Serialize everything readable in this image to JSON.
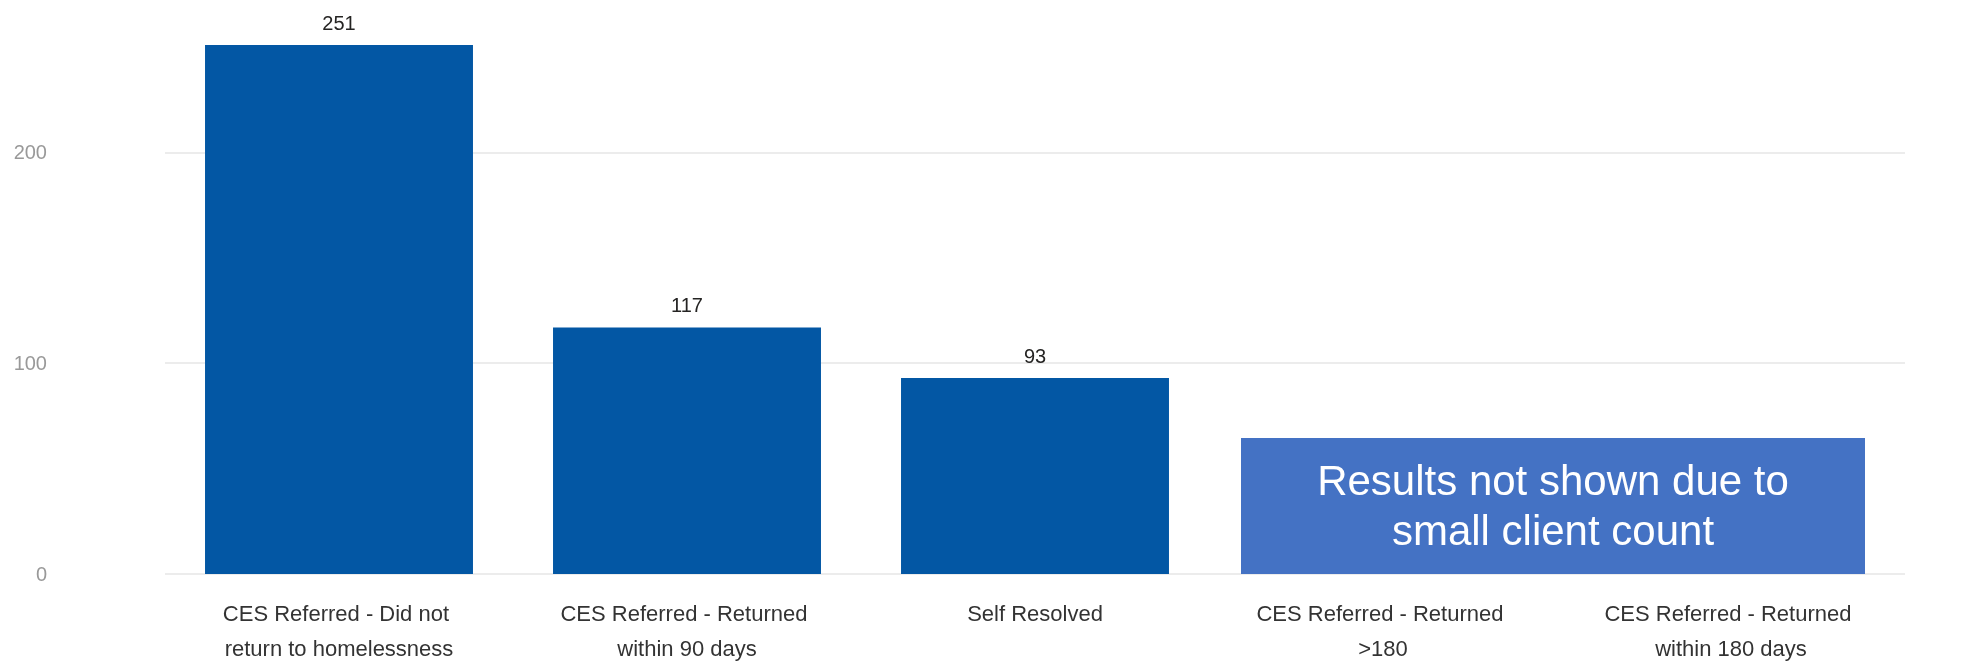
{
  "chart_data": {
    "type": "bar",
    "categories": [
      "CES Referred - Did not return to homelessness",
      "CES Referred - Returned within 90 days",
      "Self Resolved",
      "CES Referred - Returned >180",
      "CES Referred - Returned within 180 days"
    ],
    "values": [
      251,
      117,
      93,
      null,
      null
    ],
    "color": "#0357a4",
    "ylim": [
      0,
      251
    ],
    "yticks": [
      0,
      100,
      200
    ],
    "grid": "y",
    "data_labels": true,
    "annotations": [
      "Results not shown due to small client count"
    ]
  }
}
